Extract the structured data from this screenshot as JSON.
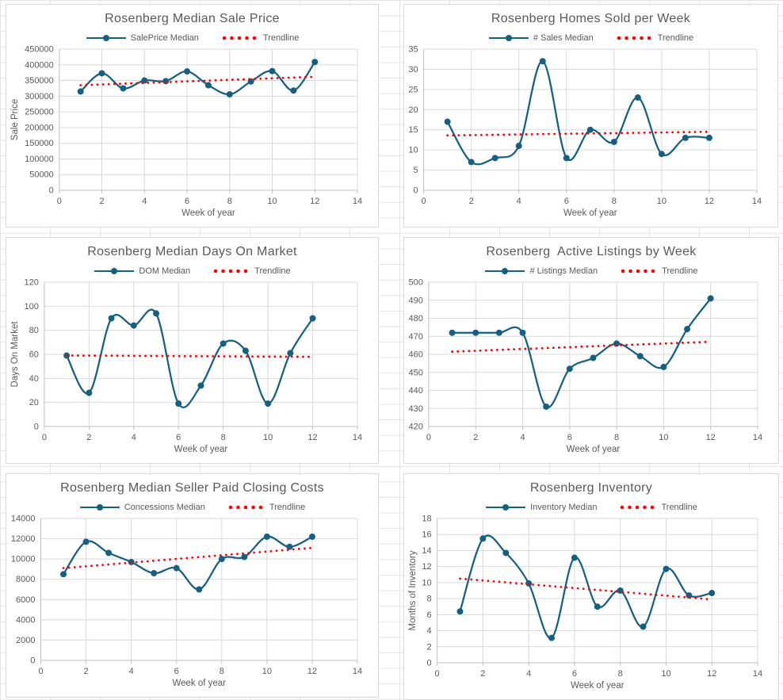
{
  "colors": {
    "series": "#156082",
    "trendline": "#FF0000",
    "text": "#595959",
    "gridline": "#D9D9D9",
    "axis": "#BFBFBF",
    "sheet_grid": "#E4E4E4",
    "chart_border": "#D9D9D9",
    "chart_bg": "#FFFFFF"
  },
  "chart_data": [
    {
      "type": "line",
      "title": "Rosenberg Median Sale Price",
      "xlabel": "Week of year",
      "ylabel": "Sale Price",
      "x": [
        1,
        2,
        3,
        4,
        5,
        6,
        7,
        8,
        9,
        10,
        11,
        12
      ],
      "series": [
        {
          "name": "SalePrice Median",
          "values": [
            315000,
            373000,
            325000,
            350000,
            348000,
            379000,
            335000,
            306000,
            347000,
            380000,
            318000,
            409000
          ]
        }
      ],
      "trendline": {
        "name": "Trendline",
        "x_start": 1,
        "x_end": 12,
        "y_start": 335000,
        "y_end": 362000
      },
      "xlim": [
        0,
        14
      ],
      "xstep": 2,
      "ylim": [
        0,
        450000
      ],
      "ystep": 50000,
      "grid": "horizontal+vertical",
      "legend_position": "top"
    },
    {
      "type": "line",
      "title": "Rosenberg Homes Sold per Week",
      "xlabel": "Week of year",
      "ylabel": "",
      "x": [
        1,
        2,
        3,
        4,
        5,
        6,
        7,
        8,
        9,
        10,
        11,
        12
      ],
      "series": [
        {
          "name": "# Sales Median",
          "values": [
            17,
            7,
            8,
            11,
            32,
            8,
            15,
            12,
            23,
            9,
            13,
            13
          ]
        }
      ],
      "trendline": {
        "name": "Trendline",
        "x_start": 1,
        "x_end": 12,
        "y_start": 13.6,
        "y_end": 14.5
      },
      "xlim": [
        0,
        14
      ],
      "xstep": 2,
      "ylim": [
        0,
        35
      ],
      "ystep": 5,
      "grid": "horizontal+vertical",
      "legend_position": "top"
    },
    {
      "type": "line",
      "title": "Rosenberg Median Days On Market",
      "xlabel": "Week of year",
      "ylabel": "Days On Market",
      "x": [
        1,
        2,
        3,
        4,
        5,
        6,
        7,
        8,
        9,
        10,
        11,
        12
      ],
      "series": [
        {
          "name": "DOM Median",
          "values": [
            59,
            28,
            90,
            84,
            94,
            19,
            34,
            69,
            63,
            19,
            61,
            90
          ]
        }
      ],
      "trendline": {
        "name": "Trendline",
        "x_start": 1,
        "x_end": 12,
        "y_start": 59,
        "y_end": 58
      },
      "xlim": [
        0,
        14
      ],
      "xstep": 2,
      "ylim": [
        0,
        120
      ],
      "ystep": 20,
      "grid": "horizontal+vertical",
      "legend_position": "top"
    },
    {
      "type": "line",
      "title": "Rosenberg  Active Listings by Week",
      "xlabel": "Week of year",
      "ylabel": "",
      "x": [
        1,
        2,
        3,
        4,
        5,
        6,
        7,
        8,
        9,
        10,
        11,
        12
      ],
      "series": [
        {
          "name": "# Listings Median",
          "values": [
            472,
            472,
            472,
            472,
            431,
            452,
            458,
            466,
            459,
            453,
            474,
            491
          ]
        }
      ],
      "trendline": {
        "name": "Trendline",
        "x_start": 1,
        "x_end": 12,
        "y_start": 461.5,
        "y_end": 467
      },
      "xlim": [
        0,
        14
      ],
      "xstep": 2,
      "ylim": [
        420,
        500
      ],
      "ystep": 10,
      "grid": "horizontal+vertical",
      "legend_position": "top"
    },
    {
      "type": "line",
      "title": "Rosenberg Median Seller Paid Closing Costs",
      "xlabel": "Week of year",
      "ylabel": "",
      "x": [
        1,
        2,
        3,
        4,
        5,
        6,
        7,
        8,
        9,
        10,
        11,
        12
      ],
      "series": [
        {
          "name": "Concessions Median",
          "values": [
            8500,
            11700,
            10600,
            9700,
            8600,
            9100,
            7000,
            10000,
            10200,
            12200,
            11200,
            12200
          ]
        }
      ],
      "trendline": {
        "name": "Trendline",
        "x_start": 1,
        "x_end": 12,
        "y_start": 9100,
        "y_end": 11100
      },
      "xlim": [
        0,
        14
      ],
      "xstep": 2,
      "ylim": [
        0,
        14000
      ],
      "ystep": 2000,
      "grid": "horizontal+vertical",
      "legend_position": "top"
    },
    {
      "type": "line",
      "title": "Rosenberg Inventory",
      "xlabel": "Week of year",
      "ylabel": "Months of Inventory",
      "x": [
        1,
        2,
        3,
        4,
        5,
        6,
        7,
        8,
        9,
        10,
        11,
        12
      ],
      "series": [
        {
          "name": "Inventory Median",
          "values": [
            6.4,
            15.5,
            13.7,
            9.9,
            3.1,
            13.1,
            7.0,
            9.0,
            4.5,
            11.7,
            8.4,
            8.7
          ]
        }
      ],
      "trendline": {
        "name": "Trendline",
        "x_start": 1,
        "x_end": 12,
        "y_start": 10.5,
        "y_end": 7.9
      },
      "xlim": [
        0,
        14
      ],
      "xstep": 2,
      "ylim": [
        0,
        18
      ],
      "ystep": 2,
      "grid": "horizontal+vertical",
      "legend_position": "top"
    }
  ]
}
